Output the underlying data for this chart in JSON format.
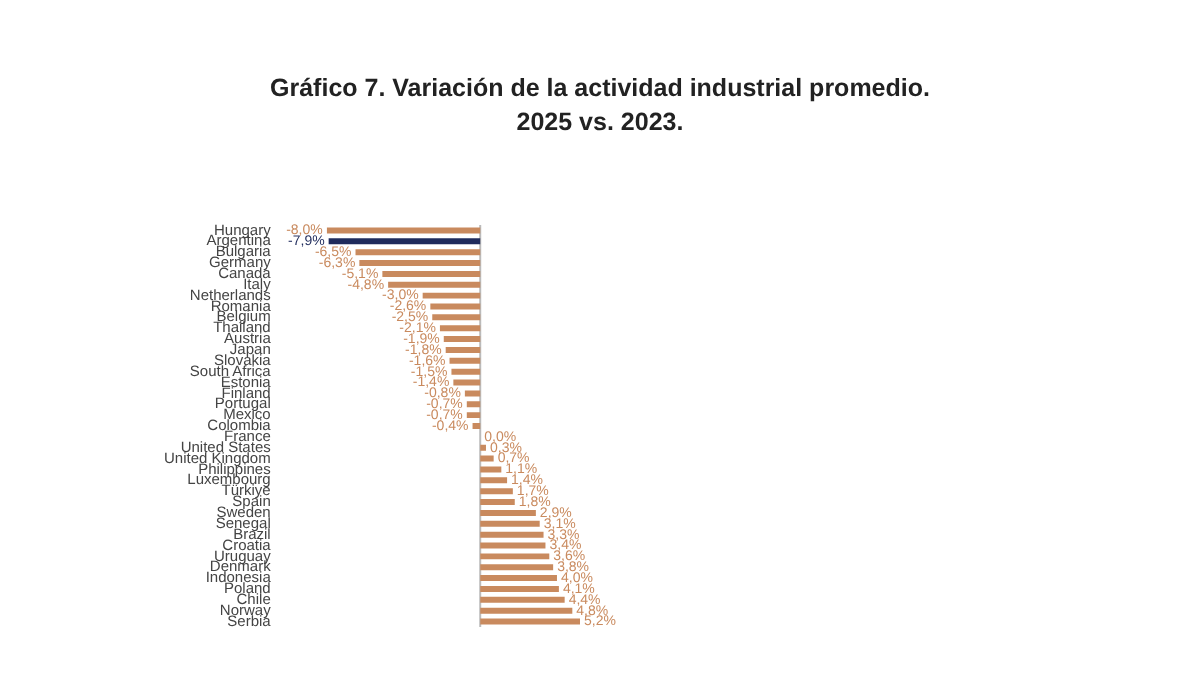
{
  "chart_data": {
    "type": "bar",
    "orientation": "horizontal",
    "title": "Gráfico 7. Variación de la actividad industrial promedio.\n2025 vs. 2023.",
    "categories": [
      "Hungary",
      "Argentina",
      "Bulgaria",
      "Germany",
      "Canada",
      "Italy",
      "Netherlands",
      "Romania",
      "Belgium",
      "Thailand",
      "Austria",
      "Japan",
      "Slovakia",
      "South Africa",
      "Estonia",
      "Finland",
      "Portugal",
      "Mexico",
      "Colombia",
      "France",
      "United States",
      "United Kingdom",
      "Philippines",
      "Luxembourg",
      "Türkiye",
      "Spain",
      "Sweden",
      "Senegal",
      "Brazil",
      "Croatia",
      "Uruguay",
      "Denmark",
      "Indonesia",
      "Poland",
      "Chile",
      "Norway",
      "Serbia"
    ],
    "values": [
      -8.0,
      -7.9,
      -6.5,
      -6.3,
      -5.1,
      -4.8,
      -3.0,
      -2.6,
      -2.5,
      -2.1,
      -1.9,
      -1.8,
      -1.6,
      -1.5,
      -1.4,
      -0.8,
      -0.7,
      -0.7,
      -0.4,
      0.0,
      0.3,
      0.7,
      1.1,
      1.4,
      1.7,
      1.8,
      2.9,
      3.1,
      3.3,
      3.4,
      3.6,
      3.8,
      4.0,
      4.1,
      4.4,
      4.8,
      5.2
    ],
    "value_labels": [
      "-8,0%",
      "-7,9%",
      "-6,5%",
      "-6,3%",
      "-5,1%",
      "-4,8%",
      "-3,0%",
      "-2,6%",
      "-2,5%",
      "-2,1%",
      "-1,9%",
      "-1,8%",
      "-1,6%",
      "-1,5%",
      "-1,4%",
      "-0,8%",
      "-0,7%",
      "-0,7%",
      "-0,4%",
      "0,0%",
      "0,3%",
      "0,7%",
      "1,1%",
      "1,4%",
      "1,7%",
      "1,8%",
      "2,9%",
      "3,1%",
      "3,3%",
      "3,4%",
      "3,6%",
      "3,8%",
      "4,0%",
      "4,1%",
      "4,4%",
      "4,8%",
      "5,2%"
    ],
    "colors": [
      "#c98a5e",
      "#1f2b5c",
      "#c98a5e",
      "#c98a5e",
      "#c98a5e",
      "#c98a5e",
      "#c98a5e",
      "#c98a5e",
      "#c98a5e",
      "#c98a5e",
      "#c98a5e",
      "#c98a5e",
      "#c98a5e",
      "#c98a5e",
      "#c98a5e",
      "#c98a5e",
      "#c98a5e",
      "#c98a5e",
      "#c98a5e",
      "#c98a5e",
      "#c98a5e",
      "#c98a5e",
      "#c98a5e",
      "#c98a5e",
      "#c98a5e",
      "#c98a5e",
      "#c98a5e",
      "#c98a5e",
      "#c98a5e",
      "#c98a5e",
      "#c98a5e",
      "#c98a5e",
      "#c98a5e",
      "#c98a5e",
      "#c98a5e",
      "#c98a5e",
      "#c98a5e"
    ],
    "tick_labels": "y",
    "ref_lines": [
      {
        "axis": "x",
        "value": 0,
        "color": "#bbbbbb"
      }
    ]
  }
}
